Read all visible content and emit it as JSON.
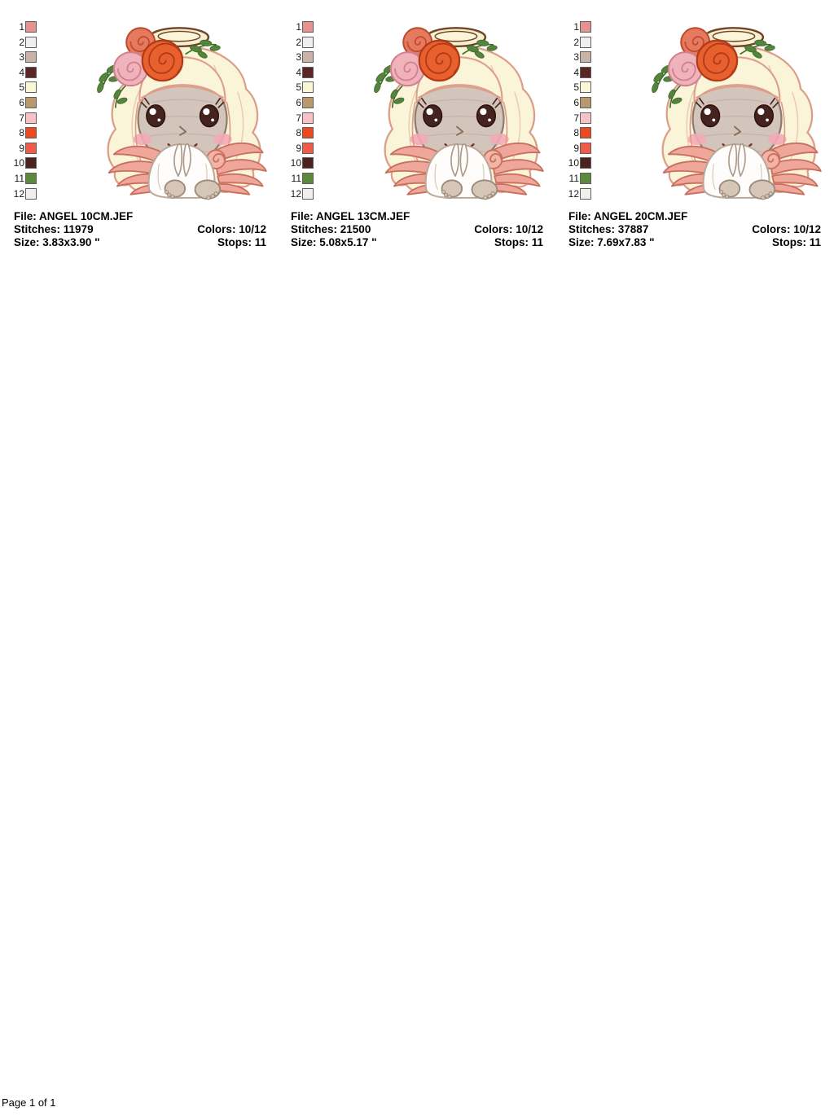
{
  "page": {
    "footer": "Page 1 of 1"
  },
  "labels": {
    "file": "File:",
    "stitches": "Stitches:",
    "size": "Size:",
    "colors": "Colors:",
    "stops": "Stops:"
  },
  "palette": [
    {
      "index": "1",
      "color": "#e6928f"
    },
    {
      "index": "2",
      "color": "#f0efed"
    },
    {
      "index": "3",
      "color": "#c7b3a7"
    },
    {
      "index": "4",
      "color": "#5a2522"
    },
    {
      "index": "5",
      "color": "#faf7d5"
    },
    {
      "index": "6",
      "color": "#b8996f"
    },
    {
      "index": "7",
      "color": "#f6c2c6"
    },
    {
      "index": "8",
      "color": "#ec4a1e"
    },
    {
      "index": "9",
      "color": "#ef5a4a"
    },
    {
      "index": "10",
      "color": "#4c2220"
    },
    {
      "index": "11",
      "color": "#5b8a3e"
    },
    {
      "index": "12",
      "color": "#f0efed"
    }
  ],
  "designs": [
    {
      "file": "ANGEL 10CM.JEF",
      "stitches": "11979",
      "size": "3.83x3.90 \"",
      "colors": "10/12",
      "stops": "11"
    },
    {
      "file": "ANGEL 13CM.JEF",
      "stitches": "21500",
      "size": "5.08x5.17 \"",
      "colors": "10/12",
      "stops": "11"
    },
    {
      "file": "ANGEL 20CM.JEF",
      "stitches": "37887",
      "size": "7.69x7.83 \"",
      "colors": "10/12",
      "stops": "11"
    }
  ]
}
